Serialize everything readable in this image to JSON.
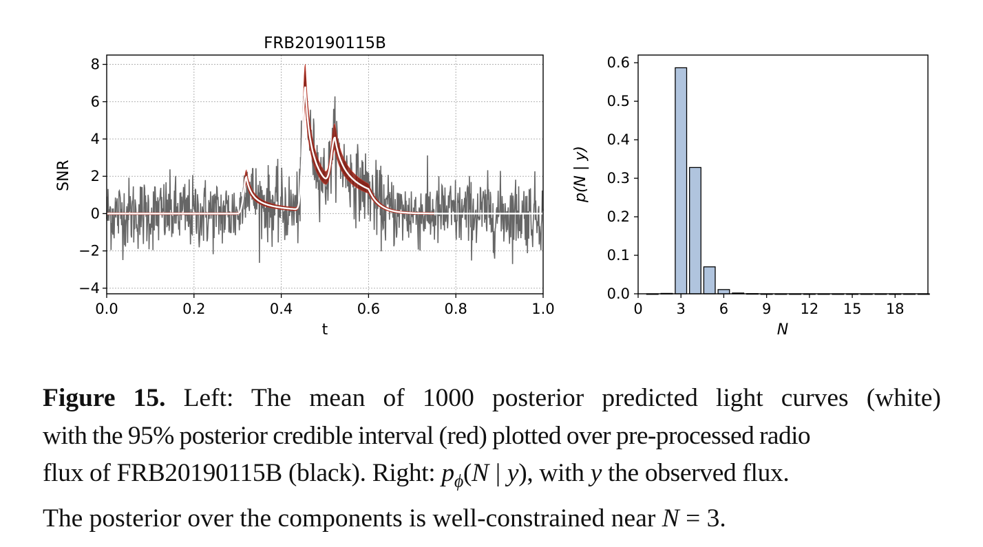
{
  "figure_number": "Figure 15.",
  "caption": {
    "line1": "Left: The mean of 1000 posterior predicted light curves (white)",
    "line2": "with the 95% posterior credible interval (red) plotted over pre-processed radio",
    "line3_prefix": "flux of FRB20190115B (black). Right:",
    "line3_math_p": "p",
    "line3_math_phi": "ϕ",
    "line3_math_open": "(",
    "line3_math_N": "N",
    "line3_math_bar": "|",
    "line3_math_y": "y",
    "line3_math_close": ")",
    "line3_mid": ", with",
    "line3_y": "y",
    "line3_suffix": "the observed flux.",
    "line4_prefix": "The posterior over the components is well-constrained near",
    "line4_N": "N",
    "line4_eq": "=",
    "line4_val": "3."
  },
  "chart_data": [
    {
      "type": "line",
      "title": "FRB20190115B",
      "xlabel": "t",
      "ylabel": "SNR",
      "xlim": [
        0.0,
        1.0
      ],
      "ylim": [
        -4.3,
        8.5
      ],
      "xticks": [
        "0.0",
        "0.2",
        "0.4",
        "0.6",
        "0.8",
        "1.0"
      ],
      "yticks": [
        "−4",
        "−2",
        "0",
        "2",
        "4",
        "6",
        "8"
      ],
      "grid": true,
      "colors": {
        "data": "#666666",
        "mean": "#ffffff",
        "interval": "#8b1a0e",
        "interval_edge": "#c0392b"
      },
      "components": [
        {
          "center": 0.32,
          "amplitude": 1.95,
          "width": 0.006
        },
        {
          "center": 0.455,
          "amplitude": 6.6,
          "width": 0.006
        },
        {
          "center": 0.523,
          "amplitude": 2.7,
          "width": 0.008
        }
      ],
      "series": [
        {
          "role": "data",
          "noise_sd": 0.95
        },
        {
          "role": "mean"
        },
        {
          "role": "interval"
        }
      ]
    },
    {
      "type": "bar",
      "xlabel": "N",
      "ylabel": "p(N | y)",
      "xlim": [
        0,
        20.3
      ],
      "ylim": [
        0,
        0.62
      ],
      "xticks": [
        "0",
        "3",
        "6",
        "9",
        "12",
        "15",
        "18"
      ],
      "yticks": [
        "0.0",
        "0.1",
        "0.2",
        "0.3",
        "0.4",
        "0.5",
        "0.6"
      ],
      "grid": false,
      "bar_color": "#b0c4de",
      "categories": [
        1,
        2,
        3,
        4,
        5,
        6,
        7,
        8,
        9,
        10,
        11,
        12,
        13,
        14,
        15,
        16,
        17,
        18,
        19,
        20
      ],
      "values": [
        0,
        0.001,
        0.587,
        0.328,
        0.07,
        0.011,
        0.002,
        0.0005,
        0,
        0,
        0,
        0,
        0,
        0,
        0,
        0,
        0,
        0,
        0,
        0
      ]
    }
  ]
}
